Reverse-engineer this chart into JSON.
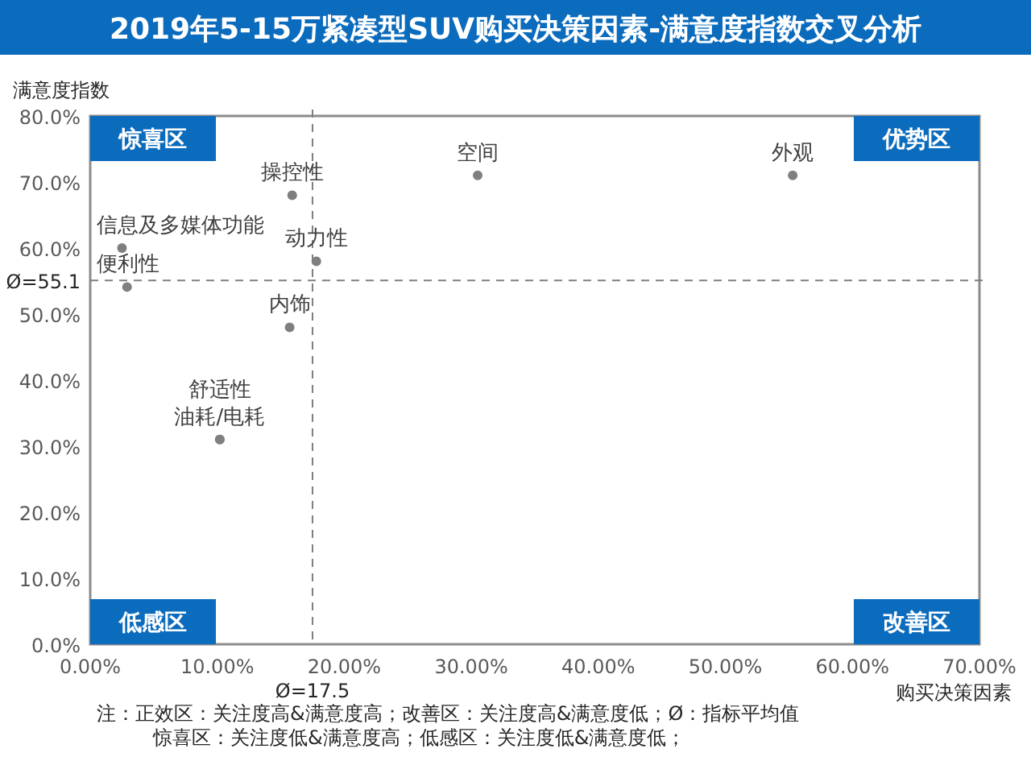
{
  "chart_data": {
    "type": "scatter",
    "title": "2019年5-15万紧凑型SUV购买决策因素-满意度指数交叉分析",
    "xlabel": "购买决策因素",
    "ylabel": "满意度指数",
    "x": [
      2.5,
      2.9,
      15.9,
      17.8,
      15.7,
      30.5,
      55.3,
      10.2,
      10.2
    ],
    "values": [
      60.0,
      54.1,
      68.0,
      58.0,
      48.0,
      71.0,
      71.0,
      31.0,
      31.0
    ],
    "value_labels": [
      "信息及多媒体功能",
      "便利性",
      "操控性",
      "动力性",
      "内饰",
      "空间",
      "外观",
      "油耗/电耗",
      "舒适性"
    ],
    "color": "#7f7f7f",
    "marker": "circle",
    "xlim": [
      0,
      70
    ],
    "ylim": [
      0,
      80
    ],
    "xticks": [
      {
        "value": 0,
        "label": "0.00%"
      },
      {
        "value": 10,
        "label": "10.00%"
      },
      {
        "value": 20,
        "label": "20.00%"
      },
      {
        "value": 30,
        "label": "30.00%"
      },
      {
        "value": 40,
        "label": "40.00%"
      },
      {
        "value": 50,
        "label": "50.00%"
      },
      {
        "value": 60,
        "label": "60.00%"
      },
      {
        "value": 70,
        "label": "70.00%"
      }
    ],
    "yticks": [
      {
        "value": 0,
        "label": "0.0%"
      },
      {
        "value": 10,
        "label": "10.0%"
      },
      {
        "value": 20,
        "label": "20.0%"
      },
      {
        "value": 30,
        "label": "30.0%"
      },
      {
        "value": 40,
        "label": "40.0%"
      },
      {
        "value": 50,
        "label": "50.0%"
      },
      {
        "value": 60,
        "label": "60.0%"
      },
      {
        "value": 70,
        "label": "70.0%"
      },
      {
        "value": 80,
        "label": "80.0%"
      }
    ],
    "ref_lines": [
      {
        "axis": "x",
        "value": 17.5,
        "label": "Ø=17.5",
        "color": "#7f7f7f",
        "line_style": "dashed"
      },
      {
        "axis": "y",
        "value": 55.1,
        "label": "Ø=55.1",
        "color": "#7f7f7f",
        "line_style": "dashed"
      }
    ],
    "annotations": [
      "惊喜区",
      "优势区",
      "低感区",
      "改善区",
      "注：正效区：关注度高&满意度高；改善区：关注度高&满意度低；Ø：指标平均值",
      "惊喜区：关注度低&满意度高；低感区：关注度低&满意度低；"
    ],
    "grid": false
  }
}
